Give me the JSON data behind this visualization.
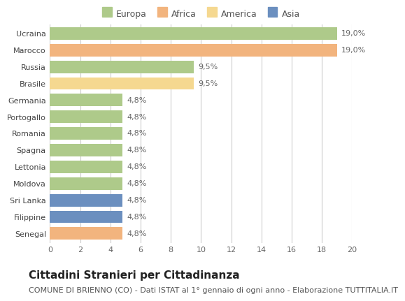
{
  "categories": [
    "Senegal",
    "Filippine",
    "Sri Lanka",
    "Moldova",
    "Lettonia",
    "Spagna",
    "Romania",
    "Portogallo",
    "Germania",
    "Brasile",
    "Russia",
    "Marocco",
    "Ucraina"
  ],
  "values": [
    4.8,
    4.8,
    4.8,
    4.8,
    4.8,
    4.8,
    4.8,
    4.8,
    4.8,
    9.5,
    9.5,
    19.0,
    19.0
  ],
  "labels": [
    "4,8%",
    "4,8%",
    "4,8%",
    "4,8%",
    "4,8%",
    "4,8%",
    "4,8%",
    "4,8%",
    "4,8%",
    "9,5%",
    "9,5%",
    "19,0%",
    "19,0%"
  ],
  "colors": [
    "#F2B47E",
    "#6B8FBF",
    "#6B8FBF",
    "#AECA8A",
    "#AECA8A",
    "#AECA8A",
    "#AECA8A",
    "#AECA8A",
    "#AECA8A",
    "#F5D890",
    "#AECA8A",
    "#F2B47E",
    "#AECA8A"
  ],
  "legend_labels": [
    "Europa",
    "Africa",
    "America",
    "Asia"
  ],
  "legend_colors": [
    "#AECA8A",
    "#F2B47E",
    "#F5D890",
    "#6B8FBF"
  ],
  "title": "Cittadini Stranieri per Cittadinanza",
  "subtitle": "COMUNE DI BRIENNO (CO) - Dati ISTAT al 1° gennaio di ogni anno - Elaborazione TUTTITALIA.IT",
  "xlim": [
    0,
    20
  ],
  "xticks": [
    0,
    2,
    4,
    6,
    8,
    10,
    12,
    14,
    16,
    18,
    20
  ],
  "background_color": "#ffffff",
  "grid_color": "#cccccc",
  "bar_height": 0.75,
  "label_fontsize": 8,
  "tick_fontsize": 8,
  "title_fontsize": 11,
  "subtitle_fontsize": 8
}
